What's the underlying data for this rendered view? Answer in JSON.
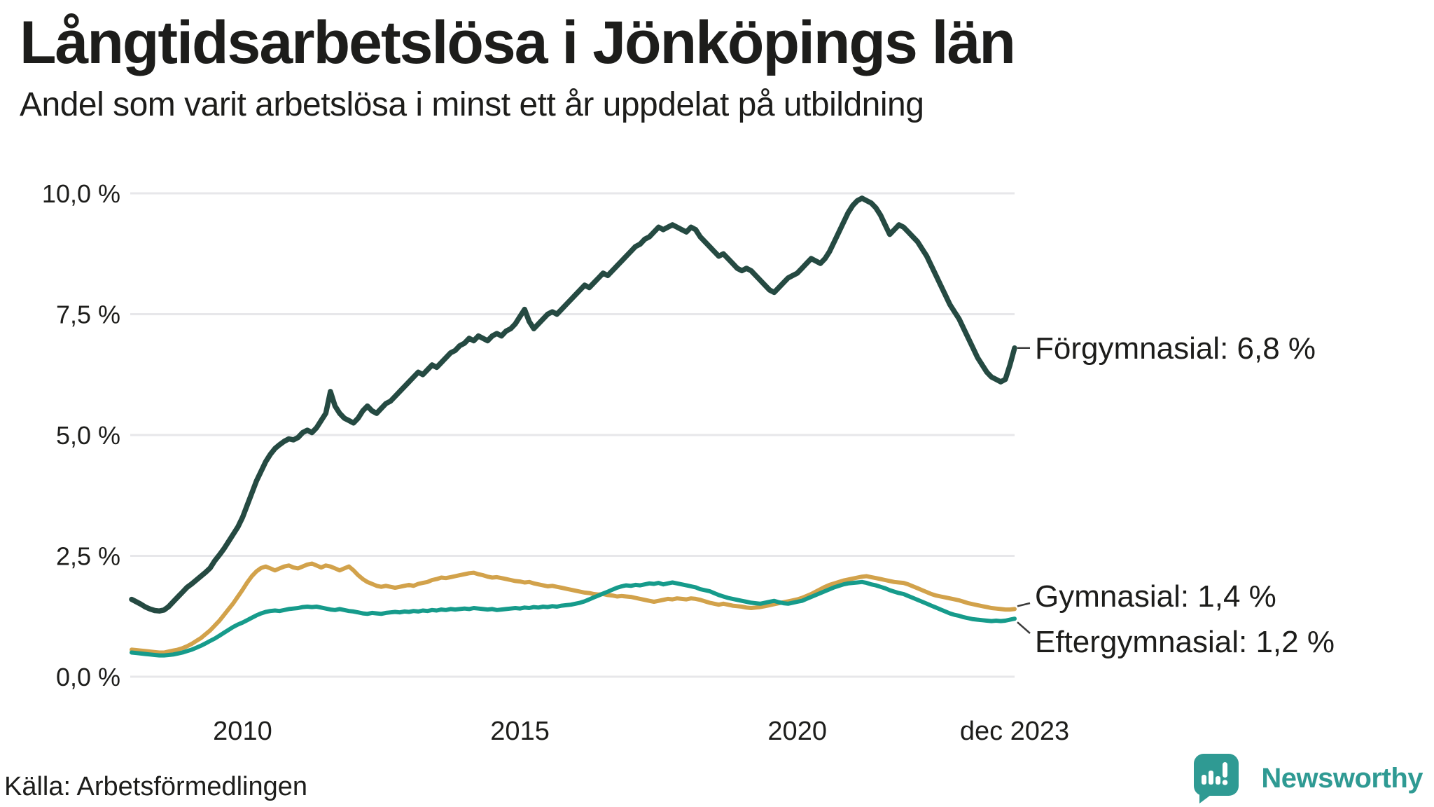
{
  "header": {
    "title": "Långtidsarbetslösa i Jönköpings län",
    "subtitle": "Andel som varit arbetslösa i minst ett år uppdelat på utbildning"
  },
  "source": {
    "label": "Källa: Arbetsförmedlingen"
  },
  "branding": {
    "name": "Newsworthy",
    "color": "#2F9A93"
  },
  "colors": {
    "background": "#ffffff",
    "text": "#1d1d1b",
    "gridline": "#e7e7ea",
    "leader": "#3c3c3c"
  },
  "chart_data": {
    "type": "line",
    "title": "Långtidsarbetslösa i Jönköpings län",
    "subtitle": "Andel som varit arbetslösa i minst ett år uppdelat på utbildning",
    "unit": "percent",
    "x_start": "2008-01",
    "x_end": "2023-12",
    "x_frequency": "monthly",
    "n_points": 192,
    "ylim": [
      0,
      10
    ],
    "grid": "horizontal",
    "legend_position": "right-end-labels",
    "y_axis": {
      "ticks": [
        {
          "v": 10,
          "label": "10,0 %"
        },
        {
          "v": 7.5,
          "label": "7,5 %"
        },
        {
          "v": 5,
          "label": "5,0 %"
        },
        {
          "v": 2.5,
          "label": "2,5 %"
        },
        {
          "v": 0,
          "label": "0,0 %"
        }
      ]
    },
    "x_axis": {
      "ticks": [
        {
          "month_index": 24,
          "label": "2010"
        },
        {
          "month_index": 84,
          "label": "2015"
        },
        {
          "month_index": 144,
          "label": "2020"
        },
        {
          "month_index": 191,
          "label": "dec 2023"
        }
      ]
    },
    "series": [
      {
        "name": "Förgymnasial",
        "color": "#254A42",
        "end_value": 6.8,
        "end_label": "Förgymnasial: 6,8 %",
        "values": [
          1.6,
          1.55,
          1.5,
          1.44,
          1.4,
          1.37,
          1.36,
          1.38,
          1.45,
          1.55,
          1.65,
          1.75,
          1.85,
          1.92,
          2.0,
          2.08,
          2.16,
          2.25,
          2.4,
          2.52,
          2.65,
          2.8,
          2.95,
          3.1,
          3.3,
          3.55,
          3.8,
          4.05,
          4.25,
          4.45,
          4.6,
          4.72,
          4.8,
          4.87,
          4.92,
          4.9,
          4.95,
          5.05,
          5.1,
          5.05,
          5.15,
          5.3,
          5.45,
          5.9,
          5.6,
          5.45,
          5.35,
          5.3,
          5.25,
          5.35,
          5.5,
          5.6,
          5.5,
          5.45,
          5.55,
          5.65,
          5.7,
          5.8,
          5.9,
          6.0,
          6.1,
          6.2,
          6.3,
          6.25,
          6.35,
          6.45,
          6.4,
          6.5,
          6.6,
          6.7,
          6.75,
          6.85,
          6.9,
          7.0,
          6.95,
          7.05,
          7.0,
          6.95,
          7.05,
          7.1,
          7.05,
          7.15,
          7.2,
          7.3,
          7.45,
          7.6,
          7.35,
          7.2,
          7.3,
          7.4,
          7.5,
          7.55,
          7.5,
          7.6,
          7.7,
          7.8,
          7.9,
          8.0,
          8.1,
          8.05,
          8.15,
          8.25,
          8.35,
          8.3,
          8.4,
          8.5,
          8.6,
          8.7,
          8.8,
          8.9,
          8.95,
          9.05,
          9.1,
          9.2,
          9.3,
          9.25,
          9.3,
          9.35,
          9.3,
          9.25,
          9.2,
          9.3,
          9.25,
          9.1,
          9.0,
          8.9,
          8.8,
          8.7,
          8.75,
          8.65,
          8.55,
          8.45,
          8.4,
          8.45,
          8.4,
          8.3,
          8.2,
          8.1,
          8.0,
          7.95,
          8.05,
          8.15,
          8.25,
          8.3,
          8.35,
          8.45,
          8.55,
          8.65,
          8.6,
          8.55,
          8.65,
          8.8,
          9.0,
          9.2,
          9.4,
          9.6,
          9.75,
          9.85,
          9.9,
          9.85,
          9.8,
          9.7,
          9.55,
          9.35,
          9.15,
          9.25,
          9.35,
          9.3,
          9.2,
          9.1,
          9.0,
          8.85,
          8.7,
          8.5,
          8.3,
          8.1,
          7.9,
          7.7,
          7.55,
          7.4,
          7.2,
          7.0,
          6.8,
          6.6,
          6.45,
          6.3,
          6.2,
          6.15,
          6.1,
          6.15,
          6.45,
          6.8
        ]
      },
      {
        "name": "Gymnasial",
        "color": "#D2A24B",
        "end_value": 1.4,
        "end_label": "Gymnasial: 1,4 %",
        "values": [
          0.56,
          0.55,
          0.54,
          0.53,
          0.52,
          0.51,
          0.5,
          0.5,
          0.52,
          0.54,
          0.56,
          0.59,
          0.63,
          0.68,
          0.74,
          0.8,
          0.88,
          0.96,
          1.06,
          1.16,
          1.28,
          1.4,
          1.52,
          1.66,
          1.8,
          1.95,
          2.08,
          2.18,
          2.25,
          2.28,
          2.24,
          2.2,
          2.24,
          2.28,
          2.3,
          2.26,
          2.24,
          2.28,
          2.32,
          2.34,
          2.3,
          2.26,
          2.3,
          2.28,
          2.24,
          2.2,
          2.24,
          2.28,
          2.2,
          2.1,
          2.02,
          1.96,
          1.92,
          1.88,
          1.86,
          1.88,
          1.86,
          1.84,
          1.86,
          1.88,
          1.9,
          1.88,
          1.92,
          1.94,
          1.96,
          2.0,
          2.02,
          2.05,
          2.04,
          2.06,
          2.08,
          2.1,
          2.12,
          2.14,
          2.15,
          2.12,
          2.1,
          2.07,
          2.05,
          2.06,
          2.04,
          2.02,
          2.0,
          1.98,
          1.97,
          1.95,
          1.96,
          1.93,
          1.91,
          1.89,
          1.87,
          1.88,
          1.86,
          1.84,
          1.82,
          1.8,
          1.78,
          1.76,
          1.74,
          1.73,
          1.71,
          1.7,
          1.71,
          1.69,
          1.68,
          1.66,
          1.67,
          1.66,
          1.65,
          1.63,
          1.61,
          1.59,
          1.57,
          1.55,
          1.57,
          1.59,
          1.61,
          1.6,
          1.62,
          1.61,
          1.6,
          1.62,
          1.61,
          1.59,
          1.56,
          1.53,
          1.51,
          1.49,
          1.51,
          1.49,
          1.47,
          1.46,
          1.45,
          1.43,
          1.42,
          1.43,
          1.44,
          1.46,
          1.48,
          1.5,
          1.52,
          1.54,
          1.56,
          1.58,
          1.6,
          1.63,
          1.67,
          1.71,
          1.76,
          1.81,
          1.86,
          1.9,
          1.93,
          1.96,
          1.99,
          2.01,
          2.03,
          2.05,
          2.07,
          2.08,
          2.06,
          2.04,
          2.02,
          2.0,
          1.98,
          1.96,
          1.95,
          1.94,
          1.91,
          1.87,
          1.83,
          1.79,
          1.75,
          1.71,
          1.68,
          1.66,
          1.64,
          1.62,
          1.6,
          1.58,
          1.55,
          1.52,
          1.5,
          1.48,
          1.46,
          1.44,
          1.42,
          1.41,
          1.4,
          1.39,
          1.39,
          1.4
        ]
      },
      {
        "name": "Eftergymnasial",
        "color": "#169B8B",
        "end_value": 1.2,
        "end_label": "Eftergymnasial: 1,2 %",
        "values": [
          0.5,
          0.49,
          0.48,
          0.47,
          0.46,
          0.45,
          0.44,
          0.44,
          0.45,
          0.46,
          0.48,
          0.5,
          0.53,
          0.56,
          0.6,
          0.64,
          0.69,
          0.74,
          0.79,
          0.85,
          0.91,
          0.97,
          1.03,
          1.08,
          1.12,
          1.17,
          1.22,
          1.27,
          1.31,
          1.34,
          1.36,
          1.37,
          1.36,
          1.38,
          1.4,
          1.41,
          1.42,
          1.44,
          1.45,
          1.44,
          1.45,
          1.43,
          1.41,
          1.39,
          1.38,
          1.4,
          1.38,
          1.36,
          1.35,
          1.33,
          1.31,
          1.3,
          1.32,
          1.31,
          1.3,
          1.32,
          1.33,
          1.34,
          1.33,
          1.35,
          1.34,
          1.36,
          1.35,
          1.37,
          1.36,
          1.38,
          1.37,
          1.39,
          1.38,
          1.4,
          1.39,
          1.4,
          1.41,
          1.4,
          1.42,
          1.41,
          1.4,
          1.39,
          1.4,
          1.38,
          1.39,
          1.4,
          1.41,
          1.42,
          1.41,
          1.43,
          1.42,
          1.44,
          1.43,
          1.45,
          1.44,
          1.46,
          1.45,
          1.47,
          1.48,
          1.49,
          1.51,
          1.53,
          1.56,
          1.6,
          1.64,
          1.68,
          1.72,
          1.76,
          1.8,
          1.84,
          1.87,
          1.89,
          1.88,
          1.9,
          1.89,
          1.91,
          1.93,
          1.92,
          1.94,
          1.91,
          1.93,
          1.95,
          1.93,
          1.91,
          1.89,
          1.87,
          1.85,
          1.81,
          1.79,
          1.77,
          1.73,
          1.69,
          1.66,
          1.63,
          1.61,
          1.59,
          1.57,
          1.55,
          1.53,
          1.52,
          1.51,
          1.53,
          1.55,
          1.57,
          1.54,
          1.52,
          1.51,
          1.53,
          1.55,
          1.57,
          1.61,
          1.65,
          1.69,
          1.73,
          1.77,
          1.81,
          1.85,
          1.88,
          1.91,
          1.93,
          1.94,
          1.95,
          1.96,
          1.94,
          1.91,
          1.89,
          1.86,
          1.83,
          1.79,
          1.76,
          1.73,
          1.71,
          1.67,
          1.63,
          1.59,
          1.55,
          1.51,
          1.47,
          1.43,
          1.39,
          1.35,
          1.31,
          1.28,
          1.26,
          1.23,
          1.21,
          1.19,
          1.18,
          1.17,
          1.16,
          1.15,
          1.16,
          1.15,
          1.16,
          1.18,
          1.2
        ]
      }
    ]
  }
}
